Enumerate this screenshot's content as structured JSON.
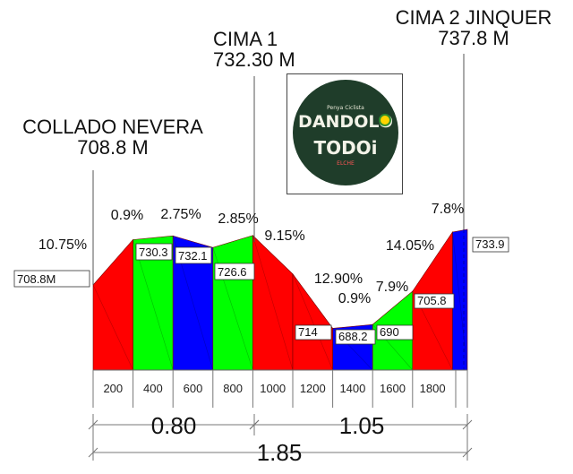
{
  "peaks": [
    {
      "line1": "COLLADO NEVERA",
      "line2": "708.8 M"
    },
    {
      "line1": "CIMA 1",
      "line2": "732.30 M"
    },
    {
      "line1": "CIMA 2 JINQUER",
      "line2": "737.8 M"
    }
  ],
  "logo": {
    "line_top": "DANDOLO",
    "line_bottom": "TODOi",
    "tagline": "Penya Ciclista",
    "side_mark": "ELCHE"
  },
  "distances": {
    "first_segment": "0.80",
    "second_segment": "1.05",
    "total": "1.85"
  },
  "colors": {
    "red": "#ff0000",
    "green": "#00ff00",
    "blue": "#0000ff"
  },
  "chart_data": {
    "type": "area",
    "description_units": {
      "x": "m",
      "y": "m"
    },
    "x": [
      0,
      200,
      400,
      600,
      800,
      1000,
      1200,
      1400,
      1600,
      1800,
      1850
    ],
    "tick_labels": [
      "200",
      "400",
      "600",
      "800",
      "1000",
      "1200",
      "1400",
      "1600",
      "1800"
    ],
    "profile": [
      {
        "x": 0,
        "elevation": 708.8
      },
      {
        "x": 200,
        "elevation": 730.3
      },
      {
        "x": 400,
        "elevation": 732.1
      },
      {
        "x": 600,
        "elevation": 726.6
      },
      {
        "x": 800,
        "elevation": 732.3
      },
      {
        "x": 1000,
        "elevation": 714
      },
      {
        "x": 1200,
        "elevation": 688.2
      },
      {
        "x": 1400,
        "elevation": 690
      },
      {
        "x": 1600,
        "elevation": 705.8
      },
      {
        "x": 1800,
        "elevation": 733.9
      }
    ],
    "segments": [
      {
        "grade": "10.75%",
        "color": "red"
      },
      {
        "grade": "0.9%",
        "color": "green"
      },
      {
        "grade": "2.75%",
        "color": "blue"
      },
      {
        "grade": "2.85%",
        "color": "green"
      },
      {
        "grade": "9.15%",
        "color": "red"
      },
      {
        "grade": "12.90%",
        "color": "red"
      },
      {
        "grade": "0.9%",
        "color": "blue"
      },
      {
        "grade": "7.9%",
        "color": "green"
      },
      {
        "grade": "14.05%",
        "color": "red"
      },
      {
        "grade": "7.8%",
        "color": "blue"
      }
    ],
    "elevation_labels": [
      "708.8M",
      "730.3",
      "732.1",
      "726.6",
      "714",
      "688.2",
      "690",
      "705.8",
      "733.9"
    ]
  }
}
